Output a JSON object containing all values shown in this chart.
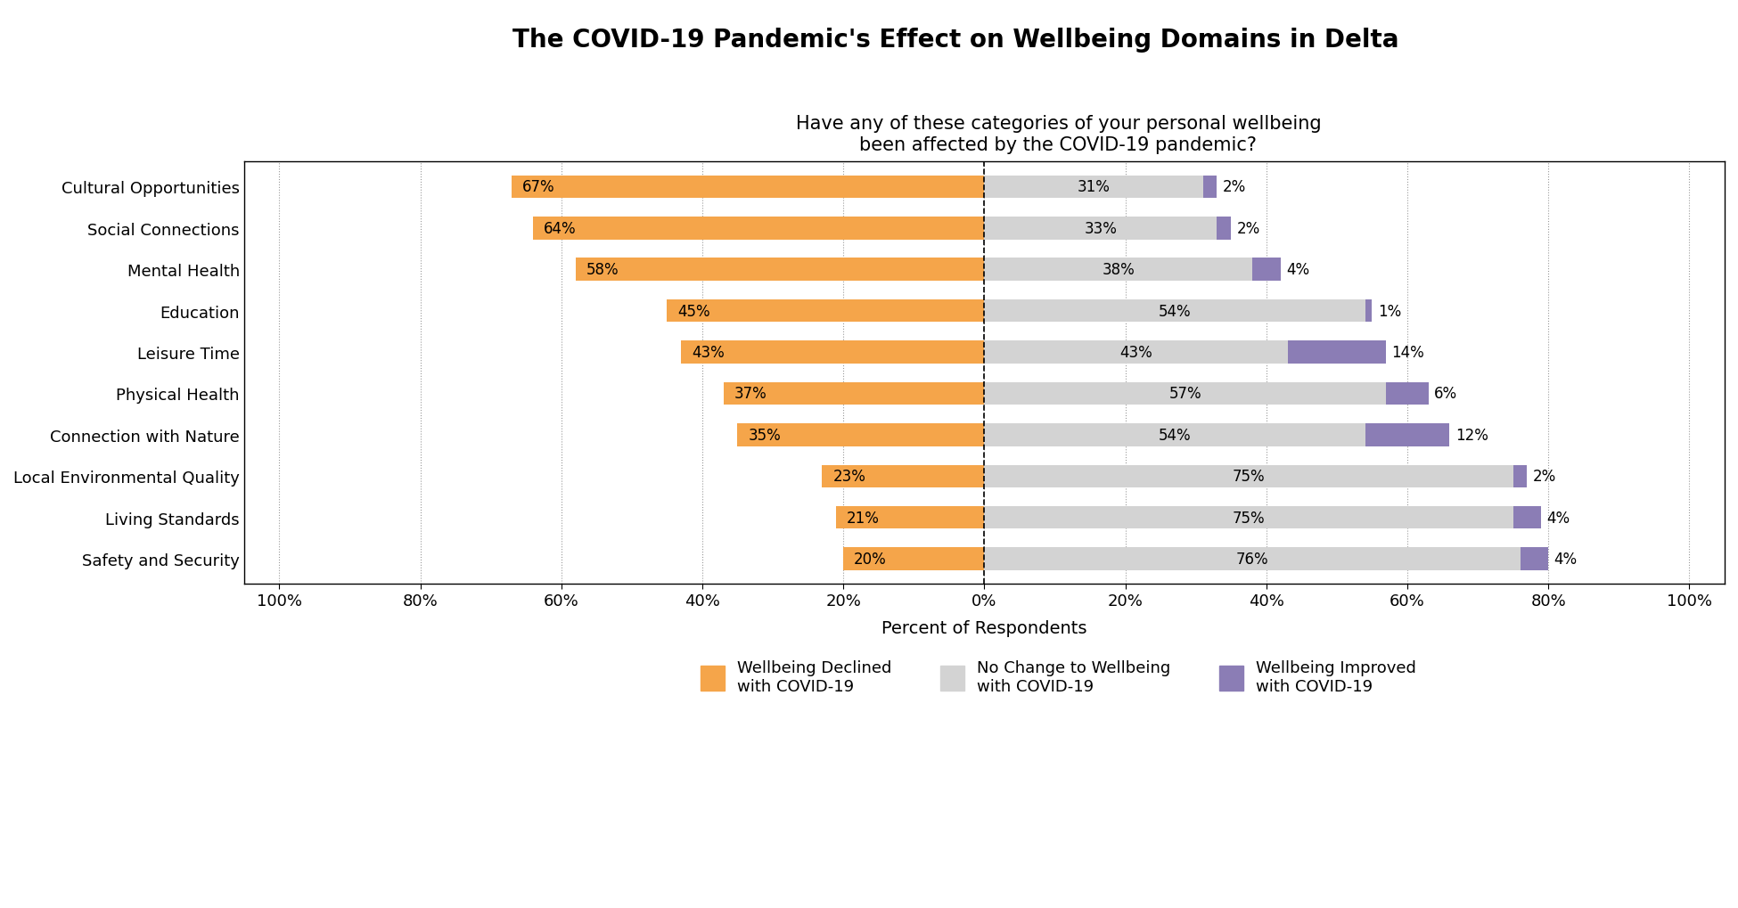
{
  "title": "The COVID-19 Pandemic's Effect on Wellbeing Domains in Delta",
  "subtitle": "Have any of these categories of your personal wellbeing\nbeen affected by the COVID-19 pandemic?",
  "xlabel": "Percent of Respondents",
  "categories": [
    "Safety and Security",
    "Living Standards",
    "Local Environmental Quality",
    "Connection with Nature",
    "Physical Health",
    "Leisure Time",
    "Education",
    "Mental Health",
    "Social Connections",
    "Cultural Opportunities"
  ],
  "declined": [
    20,
    21,
    23,
    35,
    37,
    43,
    45,
    58,
    64,
    67
  ],
  "no_change": [
    76,
    75,
    75,
    54,
    57,
    43,
    54,
    38,
    33,
    31
  ],
  "improved": [
    4,
    4,
    2,
    12,
    6,
    14,
    1,
    4,
    2,
    2
  ],
  "color_declined": "#F5A54A",
  "color_no_change": "#D3D3D3",
  "color_improved": "#8B7DB5",
  "legend_labels": [
    "Wellbeing Declined\nwith COVID-19",
    "No Change to Wellbeing\nwith COVID-19",
    "Wellbeing Improved\nwith COVID-19"
  ],
  "title_fontsize": 20,
  "subtitle_fontsize": 15,
  "xlabel_fontsize": 14,
  "tick_fontsize": 13,
  "bar_label_fontsize": 12,
  "category_fontsize": 13
}
